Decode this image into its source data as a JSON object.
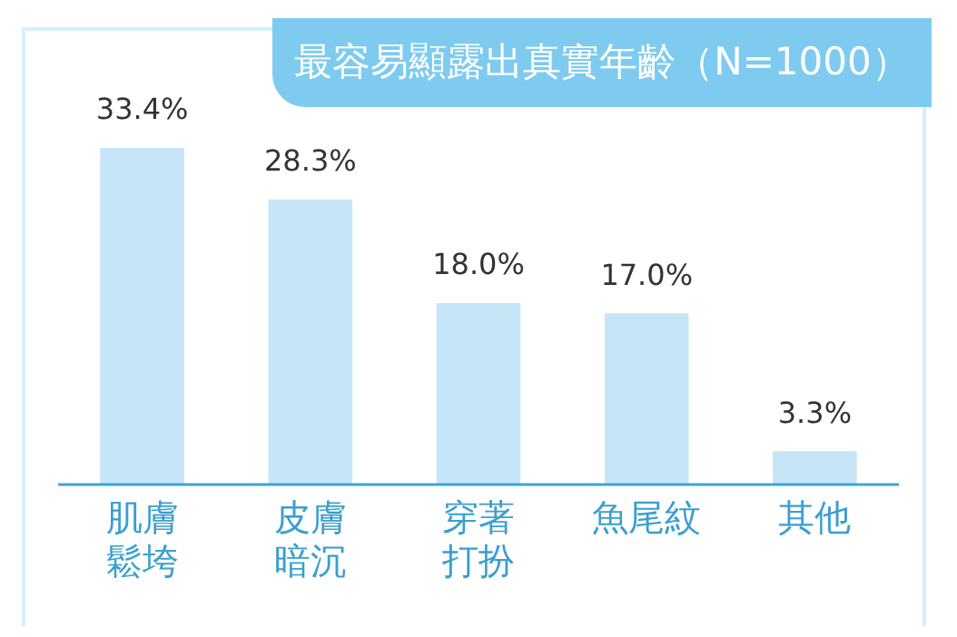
{
  "chart_data": {
    "type": "bar",
    "title": "最容易顯露出真實年齡（N=1000）",
    "categories": [
      "肌膚鬆垮",
      "皮膚暗沉",
      "穿著打扮",
      "魚尾紋",
      "其他"
    ],
    "values": [
      33.4,
      28.3,
      18.0,
      17.0,
      3.3
    ],
    "value_labels": [
      "33.4%",
      "28.3%",
      "18.0%",
      "17.0%",
      "3.3%"
    ],
    "color": "#c6e6f8"
  }
}
